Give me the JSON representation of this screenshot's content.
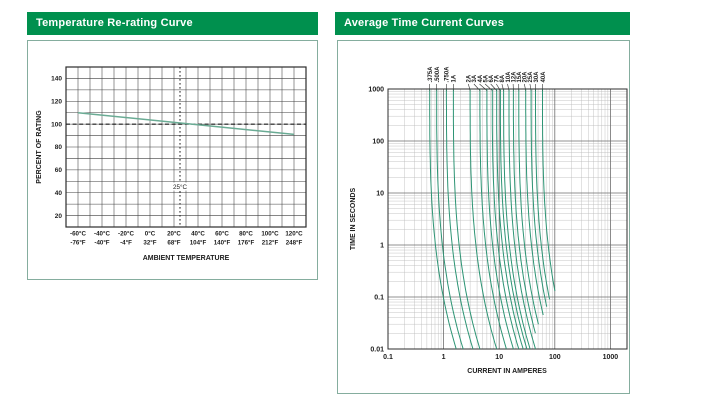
{
  "colors": {
    "banner_green": "#00904e",
    "panel_border": "#85ad9e",
    "curve_green": "#2d9474",
    "rerating_line": "#6aab94",
    "grid_left": "#3f3f3f",
    "grid_major": "#6e6e6e",
    "grid_minor": "#bdbdbd",
    "axis_border": "#2c2c2c",
    "text": "#1c1c1c"
  },
  "left_panel": {
    "title": "Temperature Re-rating Curve"
  },
  "right_panel": {
    "title": "Average Time Current Curves"
  },
  "chart_data": [
    {
      "type": "line",
      "title": "Temperature Re-rating Curve",
      "xlabel": "AMBIENT TEMPERATURE",
      "ylabel": "PERCENT OF RATING",
      "xlim": [
        -70,
        130
      ],
      "ylim": [
        10,
        150
      ],
      "grid_step": 10,
      "x_ticks_c": [
        "-60°C",
        "-40°C",
        "-20°C",
        "0°C",
        "20°C",
        "40°C",
        "60°C",
        "80°C",
        "100°C",
        "120°C"
      ],
      "x_ticks_f": [
        "-76°F",
        "-40°F",
        "-4°F",
        "32°F",
        "68°F",
        "104°F",
        "140°F",
        "176°F",
        "212°F",
        "248°F"
      ],
      "x_tick_values": [
        -60,
        -40,
        -20,
        0,
        20,
        40,
        60,
        80,
        100,
        120
      ],
      "y_ticks": [
        20,
        40,
        60,
        80,
        100,
        120,
        140
      ],
      "series": [
        {
          "name": "re-rating",
          "x": [
            -60,
            120
          ],
          "y": [
            110,
            91
          ]
        }
      ],
      "reference": {
        "h_dashed_at_percent": 100,
        "v_dashed_at_temp_c": 25,
        "v_label": "25°C"
      }
    },
    {
      "type": "line",
      "title": "Average Time Current Curves",
      "xlabel": "CURRENT IN AMPERES",
      "ylabel": "TIME IN SECONDS",
      "x_scale": "log",
      "y_scale": "log",
      "xlim": [
        0.1,
        2000
      ],
      "ylim": [
        0.01,
        1000
      ],
      "x_ticks": [
        "0.1",
        "1",
        "10",
        "100",
        "1000"
      ],
      "x_tick_values": [
        0.1,
        1,
        10,
        100,
        1000
      ],
      "y_ticks": [
        "1000",
        "100",
        "10",
        "1",
        "0.1",
        "0.01"
      ],
      "y_tick_values": [
        1000,
        100,
        10,
        1,
        0.1,
        0.01
      ],
      "model": {
        "t_top": 1000,
        "t_bottom": 0.01,
        "top_multiple": 1.5,
        "fall_multiple": 3,
        "bend_power": 3
      },
      "curves": [
        {
          "label": ".375A",
          "amps": 0.375
        },
        {
          "label": ".500A",
          "amps": 0.5
        },
        {
          "label": ".750A",
          "amps": 0.75
        },
        {
          "label": "1A",
          "amps": 1
        },
        {
          "label": "2A",
          "amps": 2
        },
        {
          "label": "3A",
          "amps": 3
        },
        {
          "label": "4A",
          "amps": 4
        },
        {
          "label": "5A",
          "amps": 5
        },
        {
          "label": "6A",
          "amps": 6
        },
        {
          "label": "7A",
          "amps": 7
        },
        {
          "label": "8A",
          "amps": 8
        },
        {
          "label": "10A",
          "amps": 10
        },
        {
          "label": "12A",
          "amps": 12,
          "t_min": 0.02
        },
        {
          "label": "15A",
          "amps": 15,
          "t_min": 0.03
        },
        {
          "label": "20A",
          "amps": 20,
          "t_min": 0.045
        },
        {
          "label": "25A",
          "amps": 25,
          "t_min": 0.065
        },
        {
          "label": "30A",
          "amps": 30,
          "t_min": 0.09
        },
        {
          "label": "40A",
          "amps": 40,
          "t_min": 0.13
        }
      ]
    }
  ]
}
